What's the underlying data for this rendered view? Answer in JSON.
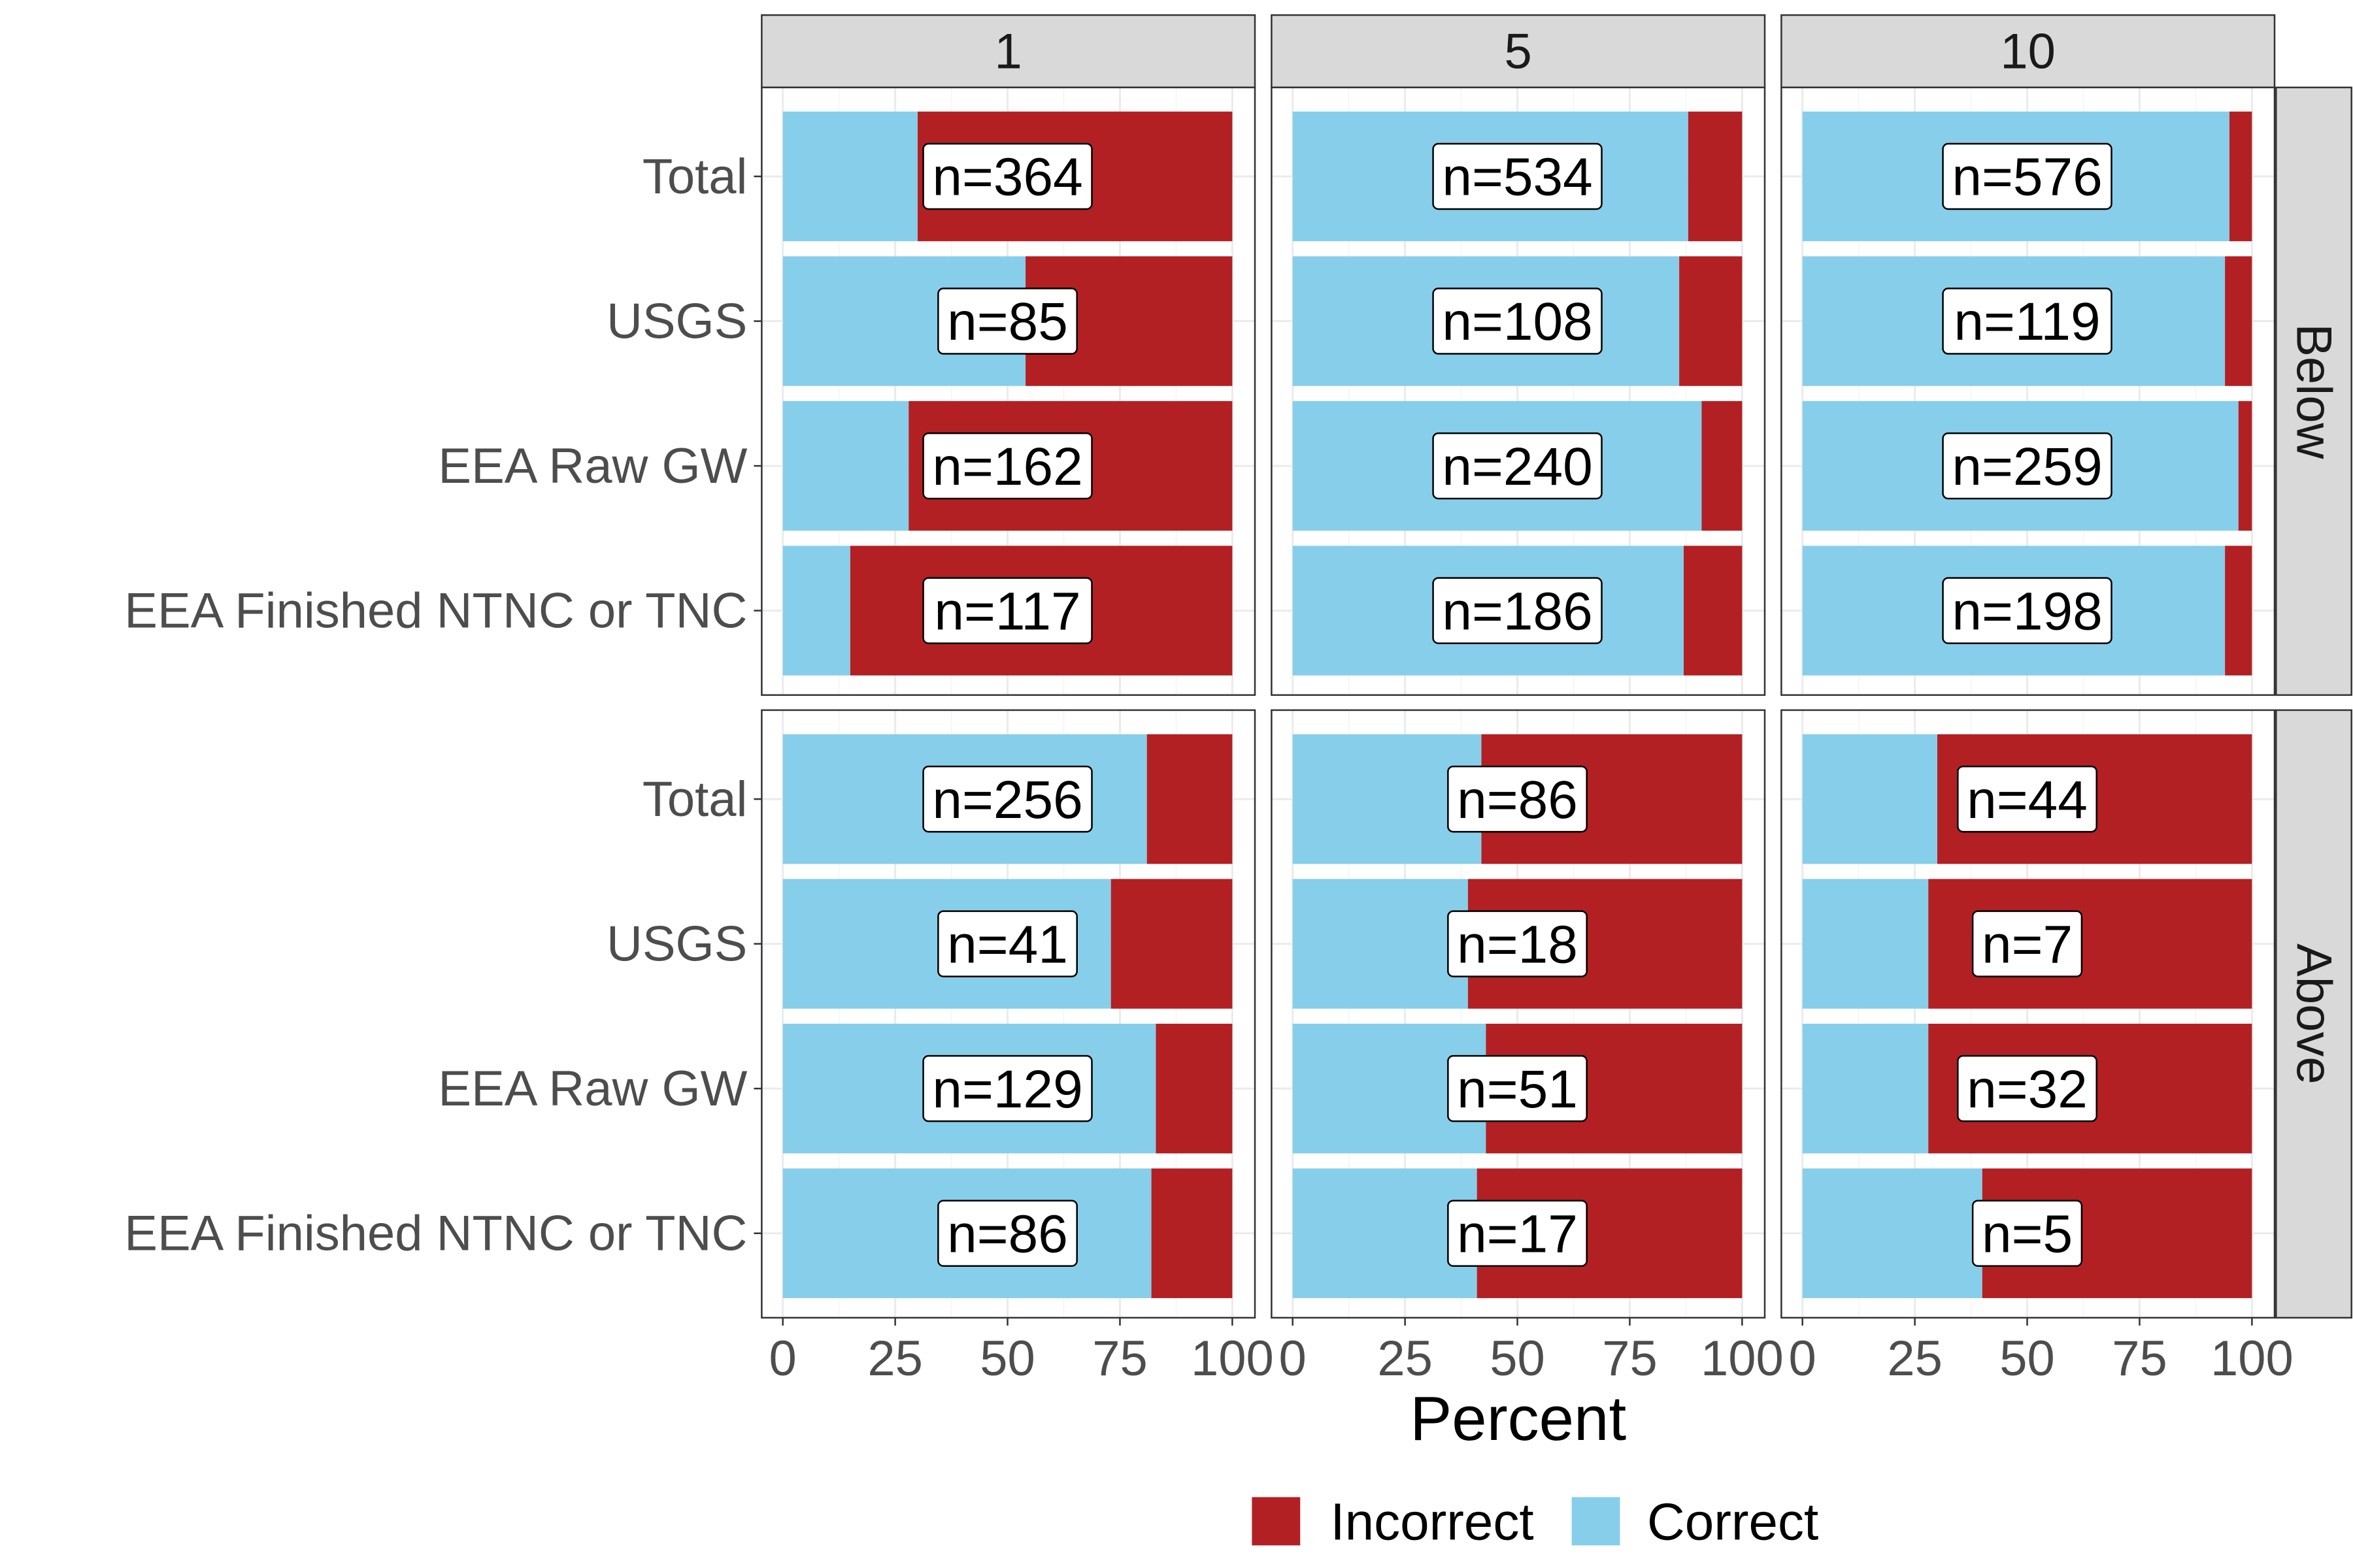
{
  "chart_data": {
    "type": "bar",
    "orientation": "horizontal",
    "stacked": true,
    "xlabel": "Percent",
    "ylabel": "",
    "xlim": [
      0,
      100
    ],
    "x_ticks": [
      "0",
      "25",
      "50",
      "75",
      "100"
    ],
    "categories": [
      "Total",
      "USGS",
      "EEA Raw GW",
      "EEA Finished NTNC or TNC"
    ],
    "col_facets": [
      "1",
      "5",
      "10"
    ],
    "row_facets": [
      "Below",
      "Above"
    ],
    "legend": {
      "position": "bottom",
      "items": [
        {
          "name": "Incorrect",
          "color": "#B22024"
        },
        {
          "name": "Correct",
          "color": "#87CEEB"
        }
      ]
    },
    "grid": true,
    "panels": [
      {
        "col": "1",
        "row": "Below",
        "correct_pct": [
          30,
          54,
          28,
          15
        ],
        "n_labels": [
          "n=364",
          "n=85",
          "n=162",
          "n=117"
        ]
      },
      {
        "col": "5",
        "row": "Below",
        "correct_pct": [
          88,
          86,
          91,
          87
        ],
        "n_labels": [
          "n=534",
          "n=108",
          "n=240",
          "n=186"
        ]
      },
      {
        "col": "10",
        "row": "Below",
        "correct_pct": [
          95,
          94,
          97,
          94
        ],
        "n_labels": [
          "n=576",
          "n=119",
          "n=259",
          "n=198"
        ]
      },
      {
        "col": "1",
        "row": "Above",
        "correct_pct": [
          81,
          73,
          83,
          82
        ],
        "n_labels": [
          "n=256",
          "n=41",
          "n=129",
          "n=86"
        ]
      },
      {
        "col": "5",
        "row": "Above",
        "correct_pct": [
          42,
          39,
          43,
          41
        ],
        "n_labels": [
          "n=86",
          "n=18",
          "n=51",
          "n=17"
        ]
      },
      {
        "col": "10",
        "row": "Above",
        "correct_pct": [
          30,
          28,
          28,
          40
        ],
        "n_labels": [
          "n=44",
          "n=7",
          "n=32",
          "n=5"
        ]
      }
    ]
  }
}
